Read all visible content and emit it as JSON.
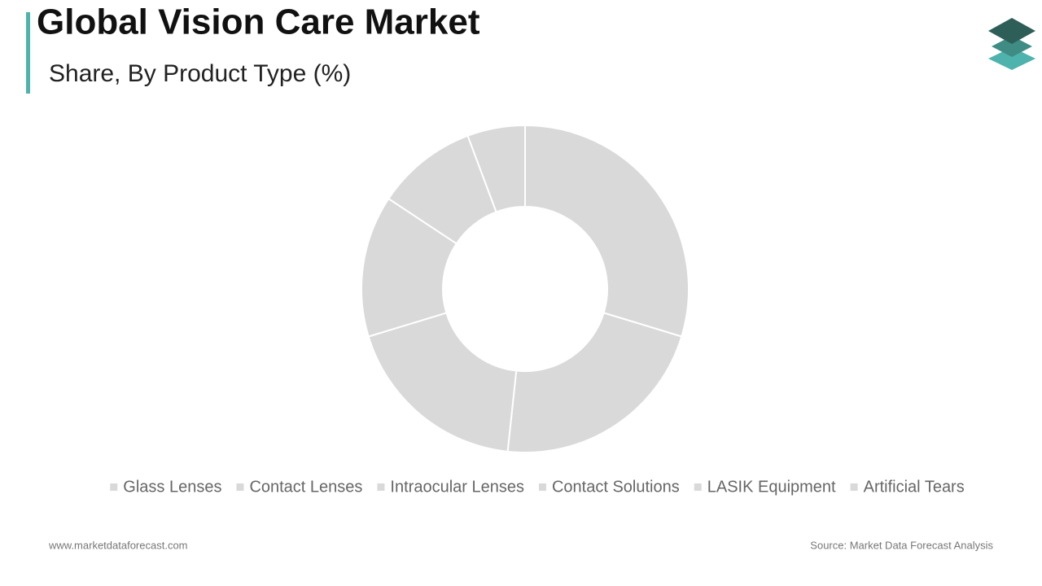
{
  "chart_data": {
    "type": "donut",
    "title": "Global Vision Care Market",
    "subtitle": "Share, By Product Type (%)",
    "categories": [
      "Glass Lenses",
      "Contact Lenses",
      "Intraocular Lenses",
      "Contact Solutions",
      "LASIK Equipment",
      "Artificial Tears"
    ],
    "values": [
      29.7,
      22,
      18.6,
      14,
      10,
      5.7
    ],
    "color": "#d9d9d9",
    "legend": "bottom",
    "website": "www.marketdataforecast.com",
    "source": "Source: Market Data Forecast Analysis"
  }
}
